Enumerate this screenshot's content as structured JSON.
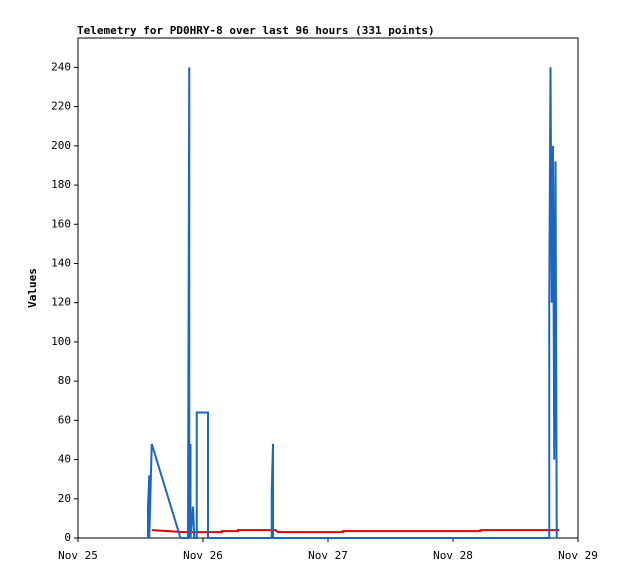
{
  "chart_data": {
    "type": "line",
    "title": "Telemetry for PD0HRY-8 over last 96 hours (331 points)",
    "y_label": "Values",
    "xlim": [
      0,
      4
    ],
    "xticks": [
      {
        "value": 0,
        "label": "Nov 25"
      },
      {
        "value": 1,
        "label": "Nov 26"
      },
      {
        "value": 2,
        "label": "Nov 27"
      },
      {
        "value": 3,
        "label": "Nov 28"
      },
      {
        "value": 4,
        "label": "Nov 29"
      }
    ],
    "ylim": [
      0,
      255
    ],
    "yticks": [
      0,
      20,
      40,
      60,
      80,
      100,
      120,
      140,
      160,
      180,
      200,
      220,
      240
    ],
    "series": [
      {
        "color": "#e00000",
        "x": [
          0.59,
          0.85,
          1.15,
          1.15,
          1.28,
          1.28,
          1.58,
          1.6,
          2.12,
          2.12,
          3.22,
          3.22,
          3.85
        ],
        "values": [
          4,
          3,
          3,
          3.5,
          3.5,
          4,
          4,
          3,
          3,
          3.5,
          3.5,
          4,
          4
        ]
      },
      {
        "color": "#1a66c0",
        "x": [
          0.56,
          0.56,
          0.57,
          0.57,
          0.58,
          0.59,
          0.82,
          0.88,
          0.89,
          0.89,
          0.9,
          0.9,
          0.92,
          0.93,
          0.95,
          0.95,
          1.04,
          1.04,
          1.55,
          1.55,
          1.56,
          1.56,
          3.77,
          3.77,
          3.78,
          3.79,
          3.8,
          3.81,
          3.82,
          3.83
        ],
        "values": [
          0,
          16,
          32,
          0,
          24,
          48,
          0,
          0,
          240,
          0,
          48,
          0,
          16,
          0,
          0,
          64,
          64,
          0,
          0,
          24,
          48,
          0,
          0,
          120,
          240,
          120,
          200,
          40,
          192,
          0
        ]
      }
    ]
  }
}
